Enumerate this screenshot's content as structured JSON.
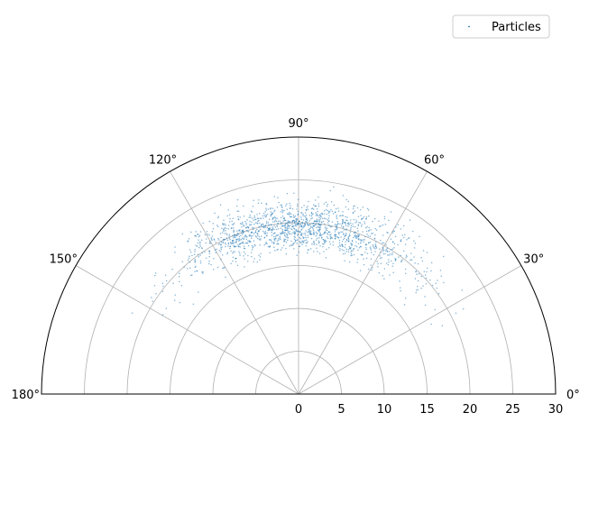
{
  "chart_data": {
    "type": "scatter",
    "projection": "polar",
    "theta_range_deg": [
      0,
      180
    ],
    "r_range": [
      0,
      30
    ],
    "theta_ticks": [
      "0°",
      "30°",
      "60°",
      "90°",
      "120°",
      "150°",
      "180°"
    ],
    "r_ticks": [
      "0",
      "5",
      "10",
      "15",
      "20",
      "25",
      "30"
    ],
    "grid": true,
    "legend": {
      "position": "top-right",
      "entries": [
        "Particles"
      ]
    },
    "series": [
      {
        "name": "Particles",
        "color": "#1f77b4",
        "marker": "dot",
        "approx_count": 1500,
        "distribution": {
          "theta_deg_mean": 90,
          "theta_deg_spread": 22,
          "theta_deg_min": 25,
          "theta_deg_max": 155,
          "r_mean": 19.5,
          "r_spread": 1.5,
          "r_min": 16,
          "r_max": 25
        }
      }
    ]
  }
}
